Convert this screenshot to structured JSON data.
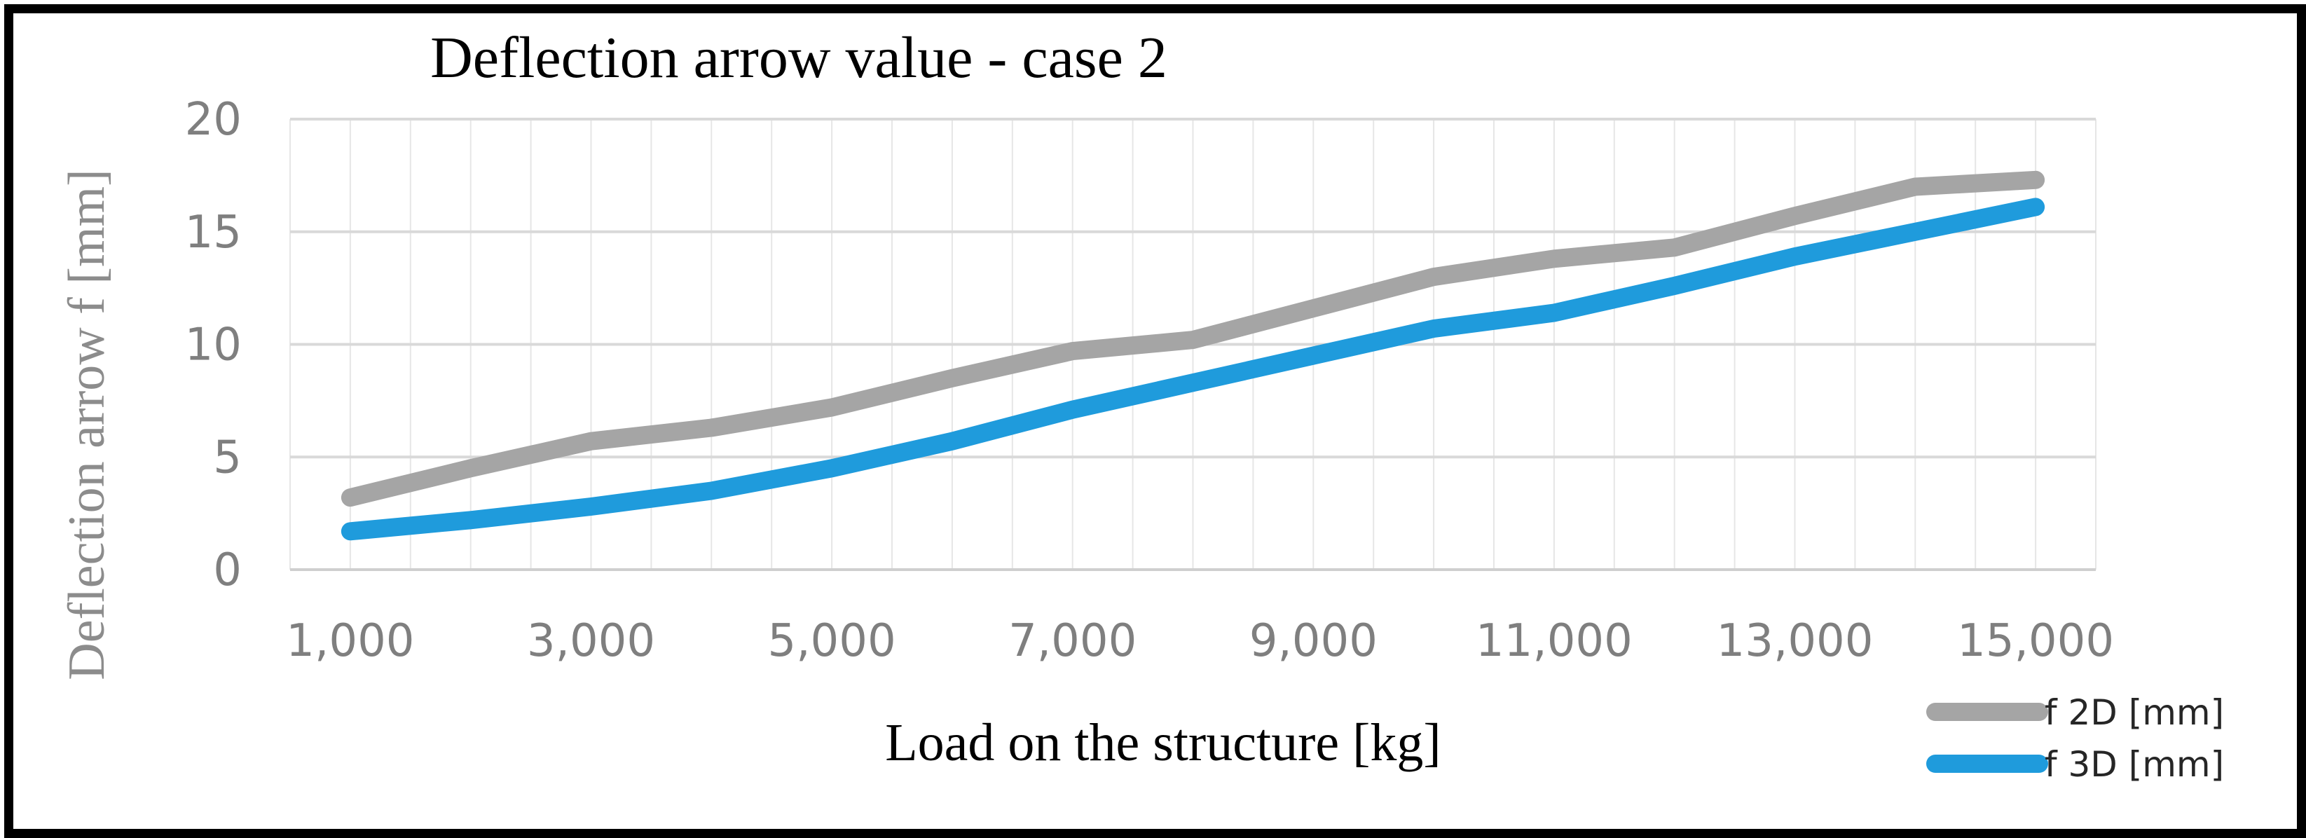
{
  "chart_data": {
    "type": "line",
    "title": "Deflection arrow value - case 2",
    "xlabel": "Load on the structure [kg]",
    "ylabel": "Deflection arrow f [mm]",
    "x": [
      1000,
      2000,
      3000,
      4000,
      5000,
      6000,
      7000,
      8000,
      9000,
      10000,
      11000,
      12000,
      13000,
      14000,
      15000
    ],
    "x_tick_labels": [
      "1,000",
      "3,000",
      "5,000",
      "7,000",
      "9,000",
      "11,000",
      "13,000",
      "15,000"
    ],
    "x_tick_values": [
      1000,
      3000,
      5000,
      7000,
      9000,
      11000,
      13000,
      15000
    ],
    "xlim": [
      500,
      15500
    ],
    "ylim": [
      0,
      20
    ],
    "y_ticks": [
      0,
      5,
      10,
      15,
      20
    ],
    "grid": true,
    "legend_position": "bottom-right",
    "series": [
      {
        "name": "f 2D [mm]",
        "color": "#a5a5a5",
        "values": [
          3.2,
          4.5,
          5.7,
          6.3,
          7.2,
          8.5,
          9.7,
          10.2,
          11.6,
          13.0,
          13.8,
          14.3,
          15.7,
          17.0,
          17.3
        ]
      },
      {
        "name": "f 3D [mm]",
        "color": "#1f9bdc",
        "values": [
          1.7,
          2.2,
          2.8,
          3.5,
          4.5,
          5.7,
          7.1,
          8.3,
          9.5,
          10.7,
          11.4,
          12.6,
          13.9,
          15.0,
          16.1
        ]
      }
    ]
  }
}
